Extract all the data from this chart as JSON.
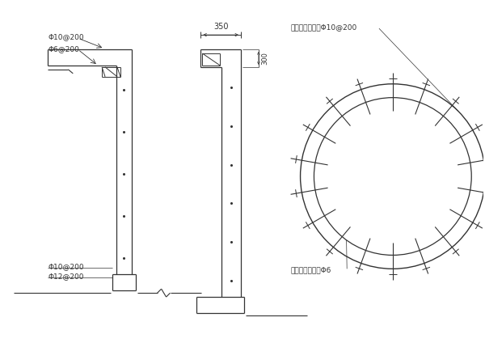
{
  "bg_color": "#ffffff",
  "line_color": "#333333",
  "text_color": "#333333",
  "labels": {
    "top_left_1": "Φ10@200",
    "top_left_2": "Φ6@200",
    "bottom_left_1": "Φ10@200",
    "bottom_left_2": "Φ12@200",
    "dim_350": "350",
    "dim_300": "300",
    "circle_top": "纵向受力钢筋：Φ10@200",
    "circle_bottom": "绱筋环向钢筋：Φ6"
  },
  "figsize": [
    6.0,
    4.5
  ],
  "dpi": 100
}
